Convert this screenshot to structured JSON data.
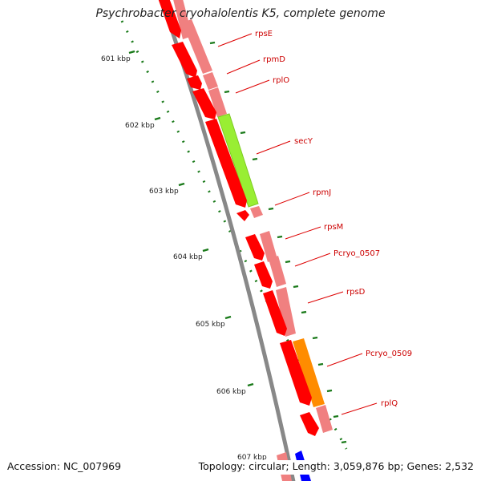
{
  "header": {
    "title": "Psychrobacter cryohalolentis K5, complete genome"
  },
  "footer": {
    "accession": "Accession: NC_007969",
    "summary": "Topology: circular; Length: 3,059,876 bp; Genes: 2,532"
  },
  "map": {
    "ticks": [
      {
        "label": "601 kbp"
      },
      {
        "label": "602 kbp"
      },
      {
        "label": "603 kbp"
      },
      {
        "label": "604 kbp"
      },
      {
        "label": "605 kbp"
      },
      {
        "label": "606 kbp"
      },
      {
        "label": "607 kbp"
      }
    ],
    "genes": [
      {
        "label": "rpsE"
      },
      {
        "label": "rpmD"
      },
      {
        "label": "rplO"
      },
      {
        "label": "secY"
      },
      {
        "label": "rpmJ"
      },
      {
        "label": "rpsM"
      },
      {
        "label": "Pcryo_0507"
      },
      {
        "label": "rpsD"
      },
      {
        "label": "Pcryo_0509"
      },
      {
        "label": "rplQ"
      }
    ],
    "colors": {
      "cds": "#ff0000",
      "ribosomal_protein": "#f08080",
      "secretion": "#99ee33",
      "rna_polymerase": "#ff8c00",
      "reverse_strand": "#0000ff",
      "backbone": "#888888",
      "tick_marks": "#1a7a1a",
      "label_lines": "#dd0000"
    }
  }
}
